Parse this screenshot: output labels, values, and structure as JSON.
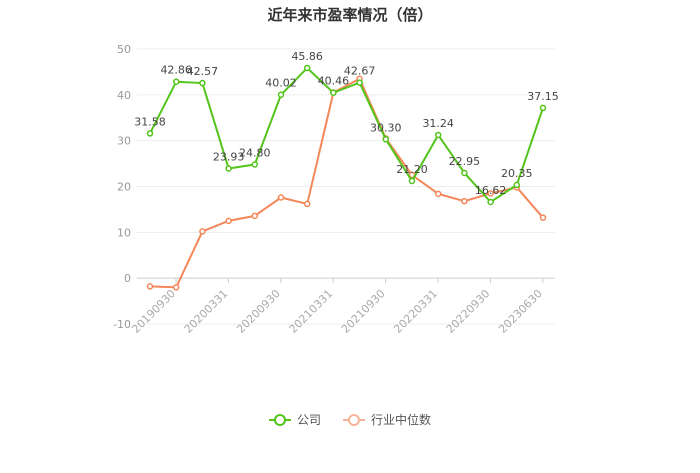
{
  "chart_data": {
    "type": "line",
    "title": "近年来市盈率情况（倍）",
    "x_tick_labels": [
      "20190930",
      "20200331",
      "20200930",
      "20210331",
      "20210930",
      "20220331",
      "20220930",
      "20230630"
    ],
    "ylim": [
      -10,
      50
    ],
    "yticks": [
      -10,
      0,
      10,
      20,
      30,
      40,
      50
    ],
    "grid": true,
    "legend_position": "bottom",
    "series": [
      {
        "name": "公司",
        "color": "#52c41a",
        "values": [
          31.58,
          42.86,
          42.57,
          23.93,
          24.8,
          40.02,
          45.86,
          40.46,
          42.67,
          30.3,
          21.2,
          31.24,
          22.95,
          16.62,
          20.35,
          37.15
        ],
        "labels": [
          "31.58",
          "42.86",
          "42.57",
          "23.93",
          "24.80",
          "40.02",
          "45.86",
          "40.46",
          "42.67",
          "30.30",
          "21.20",
          "31.24",
          "22.95",
          "16.62",
          "20.35",
          "37.15"
        ]
      },
      {
        "name": "行业中位数",
        "color": "#f4875a",
        "values": [
          -1.8,
          -2.0,
          10.2,
          12.5,
          13.6,
          17.6,
          16.2,
          40.5,
          43.5,
          30.5,
          22.5,
          18.4,
          16.8,
          18.5,
          19.8,
          13.2
        ]
      }
    ]
  }
}
